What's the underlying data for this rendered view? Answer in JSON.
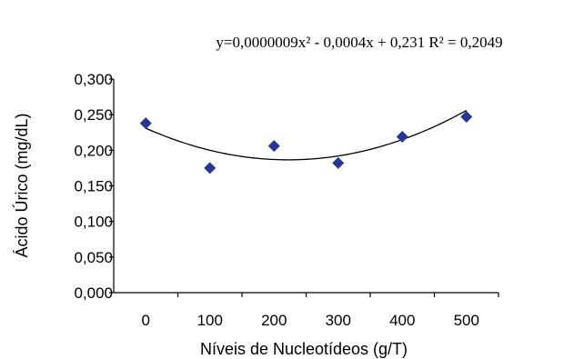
{
  "chart_data": {
    "type": "scatter",
    "title": "",
    "equation": "y=0,0000009x² - 0,0004x + 0,231 R² = 0,2049",
    "xlabel": "Níveis de Nucleotídeos (g/T)",
    "ylabel": "Ácido Úrico (mg/dL)",
    "x_tick_labels": [
      "0",
      "100",
      "200",
      "300",
      "400",
      "500"
    ],
    "y_tick_labels": [
      "0,000",
      "0,050",
      "0,100",
      "0,150",
      "0,200",
      "0,250",
      "0,300"
    ],
    "ylim": [
      0,
      0.3
    ],
    "xlim": [
      0,
      500
    ],
    "series": [
      {
        "x": [
          0,
          100,
          200,
          300,
          400,
          500
        ],
        "y": [
          0.238,
          0.175,
          0.206,
          0.182,
          0.219,
          0.247
        ],
        "marker": "diamond",
        "color": "#283593"
      }
    ],
    "trendline": {
      "type": "polynomial",
      "order": 2,
      "coefficients": [
        9e-07,
        -0.0004,
        0.231
      ],
      "color": "#000000"
    },
    "grid": false,
    "legend": "none"
  }
}
